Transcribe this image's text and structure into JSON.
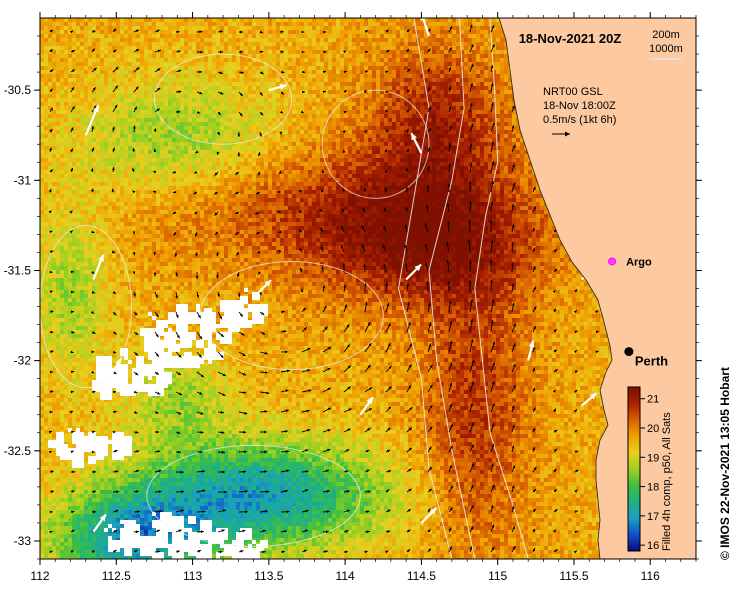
{
  "map": {
    "title": "18-Nov-2021 20Z",
    "x_ticks": [
      "112",
      "112.5",
      "113",
      "113.5",
      "114",
      "114.5",
      "115",
      "115.5",
      "116"
    ],
    "y_ticks": [
      "-30.5",
      "-31",
      "-31.5",
      "-32",
      "-32.5",
      "-33"
    ],
    "x_range": [
      112,
      116.3
    ],
    "y_range": [
      -33.1,
      -30.1
    ],
    "contour_legend": {
      "line1": "200m",
      "line2": "1000m"
    },
    "current_legend": {
      "line1": "NRT00 GSL",
      "line2": "18-Nov 18:00Z",
      "line3": "0.5m/s (1kt 6h)"
    },
    "places": [
      {
        "name": "Argo",
        "lon": 115.75,
        "lat": -31.45
      },
      {
        "name": "Perth",
        "lon": 115.86,
        "lat": -31.95
      }
    ],
    "colorbar": {
      "ticks": [
        "21",
        "20",
        "19",
        "18",
        "17",
        "16"
      ],
      "range": [
        15.8,
        21.4
      ],
      "colors": [
        "#0a0a80",
        "#1050c8",
        "#18a0c0",
        "#20b080",
        "#40c040",
        "#a0d020",
        "#e8d020",
        "#f0a000",
        "#d86000",
        "#a82000",
        "#801000"
      ],
      "label": "Filled 4h comp, p50, All Sats"
    },
    "credit": "© IMOS 22-Nov-2021 13:05 Hobart",
    "colors": {
      "land": "#fcc9a0",
      "cloud": "#ffffff",
      "arrow": "#000000",
      "contour": "#f0f0f0"
    }
  }
}
